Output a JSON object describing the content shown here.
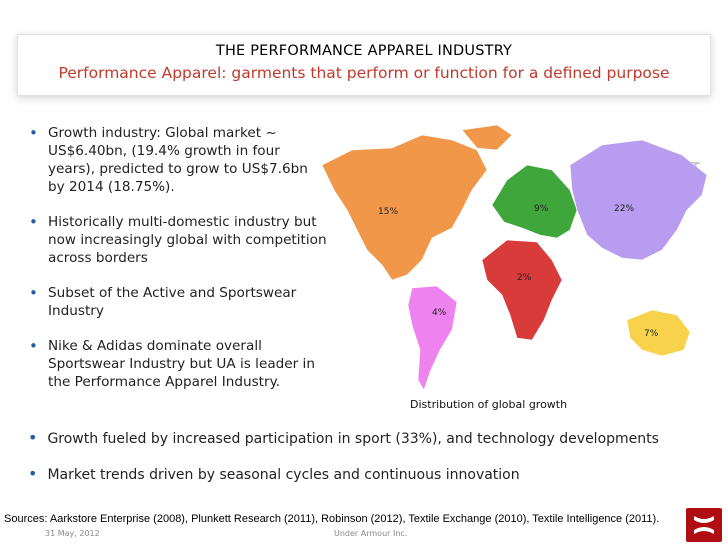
{
  "title": {
    "main": "THE PERFORMANCE APPAREL INDUSTRY",
    "sub": "Performance Apparel: garments that perform or function for a defined purpose"
  },
  "bullets": [
    {
      "text": "Growth industry: Global market ~ US$6.40bn, (19.4% growth in four years), predicted to grow to US$7.6bn by 2014 (18.75%)."
    },
    {
      "text": "Historically multi-domestic industry but now increasingly global with competition across borders"
    },
    {
      "text": "Subset of the Active and Sportswear Industry"
    },
    {
      "text": "Nike & Adidas dominate overall Sportswear Industry but UA is leader in the Performance Apparel Industry."
    }
  ],
  "wide_bullets": [
    {
      "text": "Growth fueled by increased participation in sport (33%), and technology developments"
    },
    {
      "text": "Market trends driven by seasonal cycles and continuous innovation"
    }
  ],
  "bullet_glyph": "•",
  "map": {
    "caption": "Distribution of global growth",
    "regions": [
      {
        "label": "15%",
        "color": "#f0974a"
      },
      {
        "label": "4%",
        "color": "#ee82ee"
      },
      {
        "label": "2%",
        "color": "#d93a3a"
      },
      {
        "label": "9%",
        "color": "#3ea63a"
      },
      {
        "label": "22%",
        "color": "#b79cf0"
      },
      {
        "label": "7%",
        "color": "#f7d24a"
      }
    ]
  },
  "pointer_icon": "☞",
  "sources": "Sources:  Aarkstore Enterprise (2008), Plunkett Research (2011), Robinson (2012), Textile Exchange (2010), Textile Intelligence (2011).",
  "footer": {
    "date": "31 May, 2012",
    "center": "Under Armour Inc."
  },
  "colors": {
    "title_sub": "#c0392b",
    "bullet": "#1f5e9e",
    "logo": "#b10e14"
  }
}
